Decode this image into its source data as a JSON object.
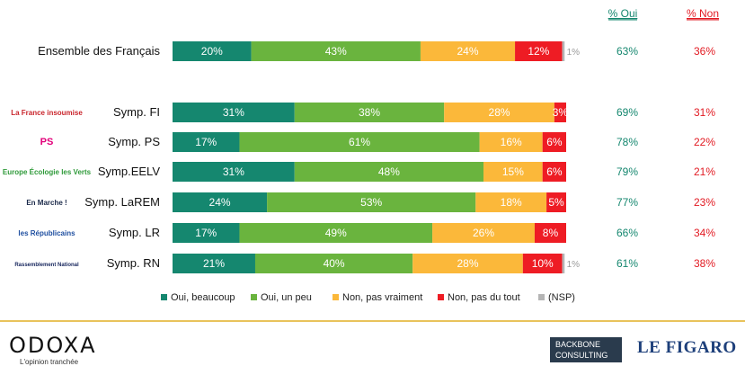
{
  "header": {
    "oui_label": "% Oui",
    "non_label": "% Non"
  },
  "colors": {
    "oui_beaucoup": "#15876f",
    "oui_un_peu": "#6ab43e",
    "non_pas_vraiment": "#fbb83a",
    "non_pas_du_tout": "#ee1c24",
    "nsp": "#b5b5b5",
    "pct_oui": "#15876f",
    "pct_non": "#e21b23"
  },
  "chart_data": {
    "type": "bar",
    "orientation": "horizontal",
    "stacked": true,
    "xlim": [
      0,
      100
    ],
    "categories": [
      "Ensemble des Français",
      "Symp. FI",
      "Symp. PS",
      "Symp.EELV",
      "Symp. LaREM",
      "Symp. LR",
      "Symp. RN"
    ],
    "series": [
      {
        "name": "Oui, beaucoup",
        "values": [
          20,
          31,
          17,
          31,
          24,
          17,
          21
        ]
      },
      {
        "name": "Oui, un peu",
        "values": [
          43,
          38,
          61,
          48,
          53,
          49,
          40
        ]
      },
      {
        "name": "Non, pas vraiment",
        "values": [
          24,
          28,
          16,
          15,
          18,
          26,
          28
        ]
      },
      {
        "name": "Non, pas du tout",
        "values": [
          12,
          3,
          6,
          6,
          5,
          8,
          10
        ]
      },
      {
        "name": "(NSP)",
        "values": [
          1,
          0,
          0,
          0,
          0,
          0,
          1
        ]
      }
    ],
    "pct_oui": [
      "63%",
      "69%",
      "78%",
      "79%",
      "77%",
      "66%",
      "61%"
    ],
    "pct_non": [
      "36%",
      "31%",
      "22%",
      "21%",
      "23%",
      "34%",
      "38%"
    ],
    "legend_position": "bottom"
  },
  "party_logos": [
    {
      "row": 1,
      "name": "la-france-insoumise-logo",
      "text": "La France insoumise"
    },
    {
      "row": 2,
      "name": "ps-logo",
      "text": "PS"
    },
    {
      "row": 3,
      "name": "eelv-logo",
      "text": "Europe Écologie les Verts"
    },
    {
      "row": 4,
      "name": "en-marche-logo",
      "text": "En Marche !"
    },
    {
      "row": 5,
      "name": "les-republicains-logo",
      "text": "les Républicains"
    },
    {
      "row": 6,
      "name": "rassemblement-national-logo",
      "text": "Rassemblement National"
    }
  ],
  "footer": {
    "brand": "ODOXA",
    "tagline": "L'opinion tranchée",
    "partner1": "BACKBONE CONSULTING",
    "partner2": "LE FIGARO"
  }
}
